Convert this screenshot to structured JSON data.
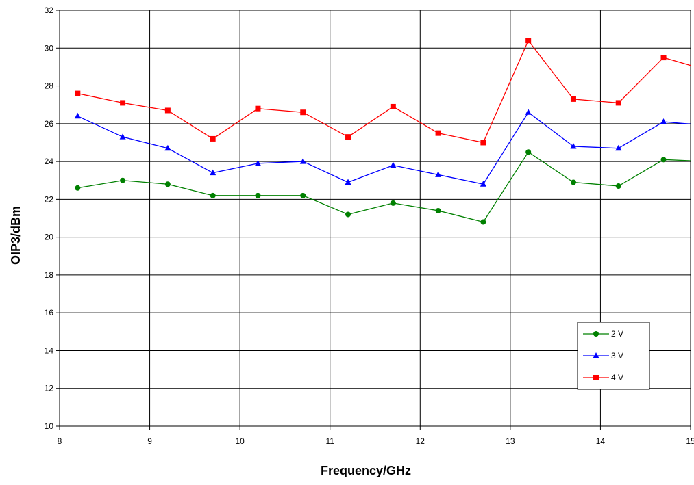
{
  "chart_data": {
    "type": "line",
    "title": "",
    "xlabel": "Frequency/GHz",
    "ylabel": "OIP3/dBm",
    "xlim": [
      8,
      15
    ],
    "ylim": [
      10,
      32
    ],
    "x_ticks": [
      8,
      9,
      10,
      11,
      12,
      13,
      14,
      15
    ],
    "y_ticks": [
      10,
      12,
      14,
      16,
      18,
      20,
      22,
      24,
      26,
      28,
      30,
      32
    ],
    "grid": true,
    "legend_position": "lower-right",
    "x": [
      8.2,
      8.7,
      9.2,
      9.7,
      10.2,
      10.7,
      11.2,
      11.7,
      12.2,
      12.7,
      13.2,
      13.7,
      14.2,
      14.7,
      15.2
    ],
    "series": [
      {
        "name": "2 V",
        "color": "#008000",
        "marker": "circle",
        "values": [
          22.6,
          23.0,
          22.8,
          22.2,
          22.2,
          22.2,
          21.2,
          21.8,
          21.4,
          20.8,
          24.5,
          22.9,
          22.7,
          24.1,
          24.0
        ]
      },
      {
        "name": "3 V",
        "color": "#0000ff",
        "marker": "triangle",
        "values": [
          26.4,
          25.3,
          24.7,
          23.4,
          23.9,
          24.0,
          22.9,
          23.8,
          23.3,
          22.8,
          26.6,
          24.8,
          24.7,
          26.1,
          25.9
        ]
      },
      {
        "name": "4 V",
        "color": "#ff0000",
        "marker": "square",
        "values": [
          27.6,
          27.1,
          26.7,
          25.2,
          26.8,
          26.6,
          25.3,
          26.9,
          25.5,
          25.0,
          30.4,
          27.3,
          27.1,
          29.5,
          28.8
        ]
      }
    ]
  }
}
